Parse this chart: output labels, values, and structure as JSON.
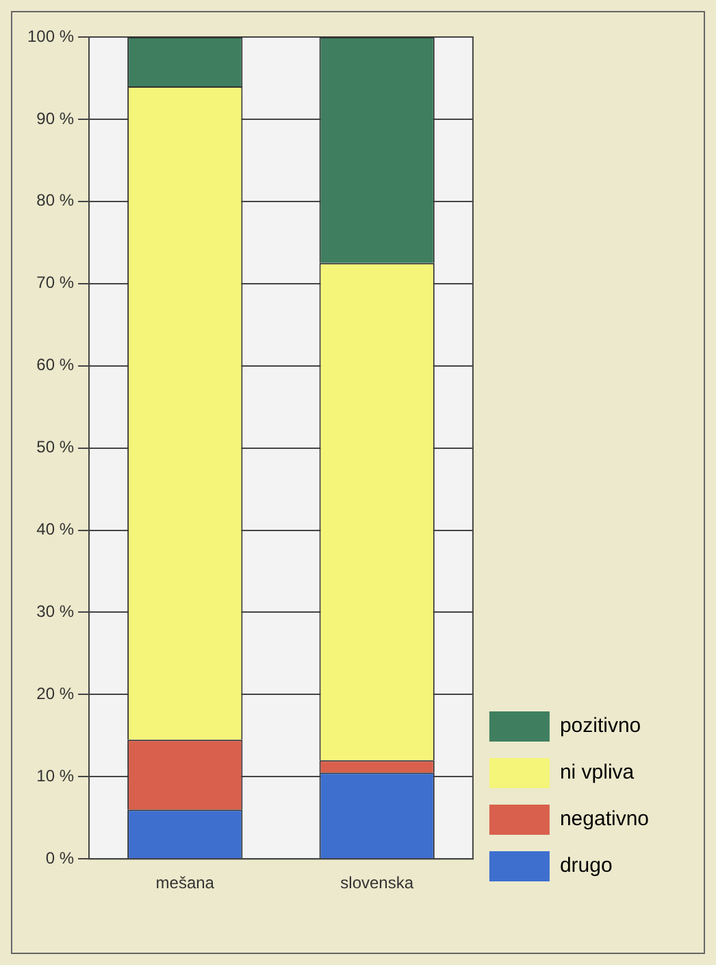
{
  "chart_data": {
    "type": "bar",
    "stacked": true,
    "categories": [
      "mešana",
      "slovenska"
    ],
    "series": [
      {
        "name": "drugo",
        "color": "#3e6fcf",
        "values": [
          6,
          10.5
        ]
      },
      {
        "name": "negativno",
        "color": "#d9604c",
        "values": [
          8.5,
          1.5
        ]
      },
      {
        "name": "ni vpliva",
        "color": "#f5f57a",
        "values": [
          79.5,
          60.5
        ]
      },
      {
        "name": "pozitivno",
        "color": "#3f7f5f",
        "values": [
          6,
          27.5
        ]
      }
    ],
    "ylim": [
      0,
      100
    ],
    "yticks": [
      {
        "value": 0,
        "label": "0 %"
      },
      {
        "value": 10,
        "label": "10 %"
      },
      {
        "value": 20,
        "label": "20 %"
      },
      {
        "value": 30,
        "label": "30 %"
      },
      {
        "value": 40,
        "label": "40 %"
      },
      {
        "value": 50,
        "label": "50 %"
      },
      {
        "value": 60,
        "label": "60 %"
      },
      {
        "value": 70,
        "label": "70 %"
      },
      {
        "value": 80,
        "label": "80 %"
      },
      {
        "value": 90,
        "label": "90 %"
      },
      {
        "value": 100,
        "label": "100 %"
      }
    ],
    "grid": "y",
    "legend": "bottom right"
  }
}
